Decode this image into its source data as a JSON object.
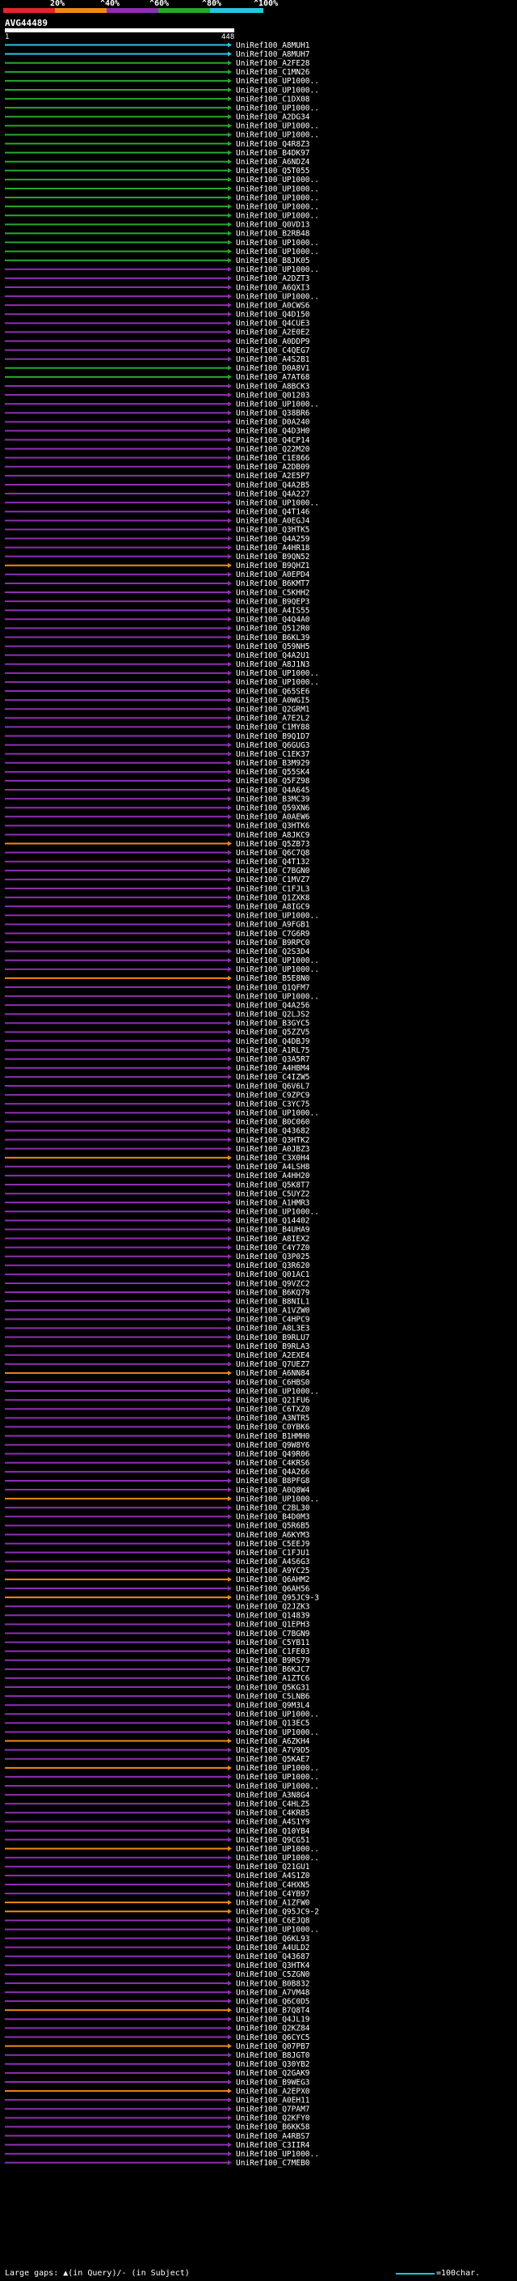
{
  "legend": {
    "ticks": [
      "20%",
      "^40%",
      "^60%",
      "^80%",
      "^100%"
    ],
    "colors": [
      "#e8232b",
      "#ef8a16",
      "#8e2fb0",
      "#27a92c",
      "#27c6e0"
    ]
  },
  "query": {
    "name": "AVG44489",
    "start": "1",
    "end": "448"
  },
  "hits": [
    {
      "label": "UniRef100_A8MUH1",
      "color": "#27c6e0"
    },
    {
      "label": "UniRef100_A8MUH7",
      "color": "#27c6e0"
    },
    {
      "label": "UniRef100_A2FE28",
      "color": "#27a92c"
    },
    {
      "label": "UniRef100_C1MN26",
      "color": "#27a92c"
    },
    {
      "label": "UniRef100_UP1000..",
      "color": "#27a92c"
    },
    {
      "label": "UniRef100_UP1000..",
      "color": "#27a92c"
    },
    {
      "label": "UniRef100_C1DX08",
      "color": "#27a92c"
    },
    {
      "label": "UniRef100_UP1000..",
      "color": "#27a92c"
    },
    {
      "label": "UniRef100_A2DG34",
      "color": "#27a92c"
    },
    {
      "label": "UniRef100_UP1000..",
      "color": "#27a92c"
    },
    {
      "label": "UniRef100_UP1000..",
      "color": "#27a92c"
    },
    {
      "label": "UniRef100_Q4R8Z3",
      "color": "#27a92c"
    },
    {
      "label": "UniRef100_B4DK97",
      "color": "#27a92c"
    },
    {
      "label": "UniRef100_A6NDZ4",
      "color": "#27a92c"
    },
    {
      "label": "UniRef100_Q5T055",
      "color": "#27a92c"
    },
    {
      "label": "UniRef100_UP1000..",
      "color": "#27a92c"
    },
    {
      "label": "UniRef100_UP1000..",
      "color": "#27a92c"
    },
    {
      "label": "UniRef100_UP1000..",
      "color": "#27a92c"
    },
    {
      "label": "UniRef100_UP1000..",
      "color": "#27a92c"
    },
    {
      "label": "UniRef100_UP1000..",
      "color": "#27a92c"
    },
    {
      "label": "UniRef100_Q0VD13",
      "color": "#27a92c"
    },
    {
      "label": "UniRef100_B2RB48",
      "color": "#27a92c"
    },
    {
      "label": "UniRef100_UP1000..",
      "color": "#27a92c"
    },
    {
      "label": "UniRef100_UP1000..",
      "color": "#27a92c"
    },
    {
      "label": "UniRef100_B8JK05",
      "color": "#27a92c"
    },
    {
      "label": "UniRef100_UP1000..",
      "color": "#8e2fb0"
    },
    {
      "label": "UniRef100_A2DZT3",
      "color": "#8e2fb0"
    },
    {
      "label": "UniRef100_A6QXI3",
      "color": "#8e2fb0"
    },
    {
      "label": "UniRef100_UP1000..",
      "color": "#8e2fb0"
    },
    {
      "label": "UniRef100_A0CWS6",
      "color": "#8e2fb0"
    },
    {
      "label": "UniRef100_Q4D150",
      "color": "#8e2fb0"
    },
    {
      "label": "UniRef100_Q4CUE3",
      "color": "#8e2fb0"
    },
    {
      "label": "UniRef100_A2E0E2",
      "color": "#8e2fb0"
    },
    {
      "label": "UniRef100_A0DDP9",
      "color": "#8e2fb0"
    },
    {
      "label": "UniRef100_C4QEG7",
      "color": "#8e2fb0"
    },
    {
      "label": "UniRef100_A4S2B1",
      "color": "#8e2fb0"
    },
    {
      "label": "UniRef100_D0A8V1",
      "color": "#27a92c"
    },
    {
      "label": "UniRef100_A7AT68",
      "color": "#27a92c"
    },
    {
      "label": "UniRef100_A8BCK3",
      "color": "#8e2fb0"
    },
    {
      "label": "UniRef100_Q01203",
      "color": "#8e2fb0"
    },
    {
      "label": "UniRef100_UP1000..",
      "color": "#8e2fb0"
    },
    {
      "label": "UniRef100_Q38BR6",
      "color": "#8e2fb0"
    },
    {
      "label": "UniRef100_D0A240",
      "color": "#8e2fb0"
    },
    {
      "label": "UniRef100_Q4D3H0",
      "color": "#8e2fb0"
    },
    {
      "label": "UniRef100_Q4CP14",
      "color": "#8e2fb0"
    },
    {
      "label": "UniRef100_Q22M20",
      "color": "#8e2fb0"
    },
    {
      "label": "UniRef100_C1E866",
      "color": "#8e2fb0"
    },
    {
      "label": "UniRef100_A2DB09",
      "color": "#8e2fb0"
    },
    {
      "label": "UniRef100_A2E5P7",
      "color": "#8e2fb0"
    },
    {
      "label": "UniRef100_Q4A2B5",
      "color": "#8e2fb0"
    },
    {
      "label": "UniRef100_Q4A227",
      "color": "#8e2fb0"
    },
    {
      "label": "UniRef100_UP1000..",
      "color": "#8e2fb0"
    },
    {
      "label": "UniRef100_Q4T146",
      "color": "#8e2fb0"
    },
    {
      "label": "UniRef100_A0EGJ4",
      "color": "#8e2fb0"
    },
    {
      "label": "UniRef100_Q3HTK5",
      "color": "#8e2fb0"
    },
    {
      "label": "UniRef100_Q4A259",
      "color": "#8e2fb0"
    },
    {
      "label": "UniRef100_A4HR18",
      "color": "#8e2fb0"
    },
    {
      "label": "UniRef100_B9QN52",
      "color": "#8e2fb0"
    },
    {
      "label": "UniRef100_B9QHZ1",
      "color": "#ef8a16"
    },
    {
      "label": "UniRef100_A0EPD4",
      "color": "#8e2fb0"
    },
    {
      "label": "UniRef100_B6KMT7",
      "color": "#8e2fb0"
    },
    {
      "label": "UniRef100_C5KHH2",
      "color": "#8e2fb0"
    },
    {
      "label": "UniRef100_B9QEP3",
      "color": "#8e2fb0"
    },
    {
      "label": "UniRef100_A4IS55",
      "color": "#8e2fb0"
    },
    {
      "label": "UniRef100_Q4Q4A0",
      "color": "#8e2fb0"
    },
    {
      "label": "UniRef100_Q512R0",
      "color": "#8e2fb0"
    },
    {
      "label": "UniRef100_B6KL39",
      "color": "#8e2fb0"
    },
    {
      "label": "UniRef100_Q59NH5",
      "color": "#8e2fb0"
    },
    {
      "label": "UniRef100_Q4A2U1",
      "color": "#8e2fb0"
    },
    {
      "label": "UniRef100_A8J1N3",
      "color": "#8e2fb0"
    },
    {
      "label": "UniRef100_UP1000..",
      "color": "#8e2fb0"
    },
    {
      "label": "UniRef100_UP1000..",
      "color": "#8e2fb0"
    },
    {
      "label": "UniRef100_Q65SE6",
      "color": "#8e2fb0"
    },
    {
      "label": "UniRef100_A0WGI5",
      "color": "#8e2fb0"
    },
    {
      "label": "UniRef100_Q2GRM1",
      "color": "#8e2fb0"
    },
    {
      "label": "UniRef100_A7E2L2",
      "color": "#8e2fb0"
    },
    {
      "label": "UniRef100_C1MY88",
      "color": "#8e2fb0"
    },
    {
      "label": "UniRef100_B9Q1D7",
      "color": "#8e2fb0"
    },
    {
      "label": "UniRef100_Q6GUG3",
      "color": "#8e2fb0"
    },
    {
      "label": "UniRef100_C1EK37",
      "color": "#8e2fb0"
    },
    {
      "label": "UniRef100_B3M929",
      "color": "#8e2fb0"
    },
    {
      "label": "UniRef100_Q55SK4",
      "color": "#8e2fb0"
    },
    {
      "label": "UniRef100_Q5FZ98",
      "color": "#8e2fb0"
    },
    {
      "label": "UniRef100_Q4A645",
      "color": "#8e2fb0"
    },
    {
      "label": "UniRef100_B3MC39",
      "color": "#8e2fb0"
    },
    {
      "label": "UniRef100_Q59XN6",
      "color": "#8e2fb0"
    },
    {
      "label": "UniRef100_A0AEW6",
      "color": "#8e2fb0"
    },
    {
      "label": "UniRef100_Q3HTK6",
      "color": "#8e2fb0"
    },
    {
      "label": "UniRef100_A8JKC9",
      "color": "#8e2fb0"
    },
    {
      "label": "UniRef100_Q5ZB73",
      "color": "#ef8a16"
    },
    {
      "label": "UniRef100_Q6C7Q8",
      "color": "#8e2fb0"
    },
    {
      "label": "UniRef100_Q4T132",
      "color": "#8e2fb0"
    },
    {
      "label": "UniRef100_C7BGN0",
      "color": "#8e2fb0"
    },
    {
      "label": "UniRef100_C1MVZ7",
      "color": "#8e2fb0"
    },
    {
      "label": "UniRef100_C1FJL3",
      "color": "#8e2fb0"
    },
    {
      "label": "UniRef100_Q1ZXK8",
      "color": "#8e2fb0"
    },
    {
      "label": "UniRef100_A8IGC9",
      "color": "#8e2fb0"
    },
    {
      "label": "UniRef100_UP1000..",
      "color": "#8e2fb0"
    },
    {
      "label": "UniRef100_A9FGB1",
      "color": "#8e2fb0"
    },
    {
      "label": "UniRef100_C7G6R9",
      "color": "#8e2fb0"
    },
    {
      "label": "UniRef100_B9RPC0",
      "color": "#8e2fb0"
    },
    {
      "label": "UniRef100_Q2S3D4",
      "color": "#8e2fb0"
    },
    {
      "label": "UniRef100_UP1000..",
      "color": "#8e2fb0"
    },
    {
      "label": "UniRef100_UP1000..",
      "color": "#8e2fb0"
    },
    {
      "label": "UniRef100_B5E8N0",
      "color": "#ef8a16"
    },
    {
      "label": "UniRef100_Q1QFM7",
      "color": "#8e2fb0"
    },
    {
      "label": "UniRef100_UP1000..",
      "color": "#8e2fb0"
    },
    {
      "label": "UniRef100_Q4A256",
      "color": "#8e2fb0"
    },
    {
      "label": "UniRef100_Q2LJS2",
      "color": "#8e2fb0"
    },
    {
      "label": "UniRef100_B3GYC5",
      "color": "#8e2fb0"
    },
    {
      "label": "UniRef100_Q5ZZV5",
      "color": "#8e2fb0"
    },
    {
      "label": "UniRef100_Q4DBJ9",
      "color": "#8e2fb0"
    },
    {
      "label": "UniRef100_A1RL75",
      "color": "#8e2fb0"
    },
    {
      "label": "UniRef100_Q3A5R7",
      "color": "#8e2fb0"
    },
    {
      "label": "UniRef100_A4HBM4",
      "color": "#8e2fb0"
    },
    {
      "label": "UniRef100_C4IZW5",
      "color": "#8e2fb0"
    },
    {
      "label": "UniRef100_Q6V6L7",
      "color": "#8e2fb0"
    },
    {
      "label": "UniRef100_C9ZPC9",
      "color": "#8e2fb0"
    },
    {
      "label": "UniRef100_C3YC75",
      "color": "#8e2fb0"
    },
    {
      "label": "UniRef100_UP1000..",
      "color": "#8e2fb0"
    },
    {
      "label": "UniRef100_B0C060",
      "color": "#8e2fb0"
    },
    {
      "label": "UniRef100_Q43682",
      "color": "#8e2fb0"
    },
    {
      "label": "UniRef100_Q3HTK2",
      "color": "#8e2fb0"
    },
    {
      "label": "UniRef100_A0JBZ3",
      "color": "#8e2fb0"
    },
    {
      "label": "UniRef100_C3X0H4",
      "color": "#ef8a16"
    },
    {
      "label": "UniRef100_A4LSH8",
      "color": "#8e2fb0"
    },
    {
      "label": "UniRef100_A4HH20",
      "color": "#8e2fb0"
    },
    {
      "label": "UniRef100_Q5K8T7",
      "color": "#8e2fb0"
    },
    {
      "label": "UniRef100_C5UYZ2",
      "color": "#8e2fb0"
    },
    {
      "label": "UniRef100_A1HMR3",
      "color": "#8e2fb0"
    },
    {
      "label": "UniRef100_UP1000..",
      "color": "#8e2fb0"
    },
    {
      "label": "UniRef100_Q14402",
      "color": "#8e2fb0"
    },
    {
      "label": "UniRef100_B4UHA9",
      "color": "#8e2fb0"
    },
    {
      "label": "UniRef100_A8IEX2",
      "color": "#8e2fb0"
    },
    {
      "label": "UniRef100_C4Y7Z0",
      "color": "#8e2fb0"
    },
    {
      "label": "UniRef100_Q3P025",
      "color": "#8e2fb0"
    },
    {
      "label": "UniRef100_Q3R620",
      "color": "#8e2fb0"
    },
    {
      "label": "UniRef100_Q01AC1",
      "color": "#8e2fb0"
    },
    {
      "label": "UniRef100_Q9VZC2",
      "color": "#8e2fb0"
    },
    {
      "label": "UniRef100_B6KQ79",
      "color": "#8e2fb0"
    },
    {
      "label": "UniRef100_B8NIL1",
      "color": "#8e2fb0"
    },
    {
      "label": "UniRef100_A1VZW0",
      "color": "#8e2fb0"
    },
    {
      "label": "UniRef100_C4HPC9",
      "color": "#8e2fb0"
    },
    {
      "label": "UniRef100_A8L3E3",
      "color": "#8e2fb0"
    },
    {
      "label": "UniRef100_B9RLU7",
      "color": "#8e2fb0"
    },
    {
      "label": "UniRef100_B9RLA3",
      "color": "#8e2fb0"
    },
    {
      "label": "UniRef100_A2EXE4",
      "color": "#8e2fb0"
    },
    {
      "label": "UniRef100_Q7UEZ7",
      "color": "#8e2fb0"
    },
    {
      "label": "UniRef100_A6NN84",
      "color": "#ef8a16"
    },
    {
      "label": "UniRef100_C6HBS0",
      "color": "#8e2fb0"
    },
    {
      "label": "UniRef100_UP1000..",
      "color": "#8e2fb0"
    },
    {
      "label": "UniRef100_Q21FU6",
      "color": "#8e2fb0"
    },
    {
      "label": "UniRef100_C6TXZ0",
      "color": "#8e2fb0"
    },
    {
      "label": "UniRef100_A3NTR5",
      "color": "#8e2fb0"
    },
    {
      "label": "UniRef100_C0YBK6",
      "color": "#8e2fb0"
    },
    {
      "label": "UniRef100_B1HMH0",
      "color": "#8e2fb0"
    },
    {
      "label": "UniRef100_Q9W8Y6",
      "color": "#8e2fb0"
    },
    {
      "label": "UniRef100_Q49R06",
      "color": "#8e2fb0"
    },
    {
      "label": "UniRef100_C4KRS6",
      "color": "#8e2fb0"
    },
    {
      "label": "UniRef100_Q4A266",
      "color": "#8e2fb0"
    },
    {
      "label": "UniRef100_B8PFG8",
      "color": "#8e2fb0"
    },
    {
      "label": "UniRef100_A0Q8W4",
      "color": "#8e2fb0"
    },
    {
      "label": "UniRef100_UP1000..",
      "color": "#ef8a16"
    },
    {
      "label": "UniRef100_C2BL30",
      "color": "#8e2fb0"
    },
    {
      "label": "UniRef100_B4D0M3",
      "color": "#8e2fb0"
    },
    {
      "label": "UniRef100_Q5R6B5",
      "color": "#8e2fb0"
    },
    {
      "label": "UniRef100_A6KYM3",
      "color": "#8e2fb0"
    },
    {
      "label": "UniRef100_C5EEJ9",
      "color": "#8e2fb0"
    },
    {
      "label": "UniRef100_C1FJU1",
      "color": "#8e2fb0"
    },
    {
      "label": "UniRef100_A4S6G3",
      "color": "#8e2fb0"
    },
    {
      "label": "UniRef100_A9YC25",
      "color": "#8e2fb0"
    },
    {
      "label": "UniRef100_Q6AHM2",
      "color": "#ef8a16"
    },
    {
      "label": "UniRef100_Q6AH56",
      "color": "#8e2fb0"
    },
    {
      "label": "UniRef100_Q95JC9-3",
      "color": "#ef8a16"
    },
    {
      "label": "UniRef100_Q2JZK3",
      "color": "#8e2fb0"
    },
    {
      "label": "UniRef100_Q14839",
      "color": "#8e2fb0"
    },
    {
      "label": "UniRef100_Q1EPH3",
      "color": "#8e2fb0"
    },
    {
      "label": "UniRef100_C7BGN9",
      "color": "#8e2fb0"
    },
    {
      "label": "UniRef100_C5YB11",
      "color": "#8e2fb0"
    },
    {
      "label": "UniRef100_C1FE03",
      "color": "#8e2fb0"
    },
    {
      "label": "UniRef100_B9RS79",
      "color": "#8e2fb0"
    },
    {
      "label": "UniRef100_B6KJC7",
      "color": "#8e2fb0"
    },
    {
      "label": "UniRef100_A1ZTC6",
      "color": "#8e2fb0"
    },
    {
      "label": "UniRef100_Q5KG31",
      "color": "#8e2fb0"
    },
    {
      "label": "UniRef100_C5LNB6",
      "color": "#8e2fb0"
    },
    {
      "label": "UniRef100_Q9M3L4",
      "color": "#8e2fb0"
    },
    {
      "label": "UniRef100_UP1000..",
      "color": "#8e2fb0"
    },
    {
      "label": "UniRef100_Q13EC5",
      "color": "#8e2fb0"
    },
    {
      "label": "UniRef100_UP1000..",
      "color": "#8e2fb0"
    },
    {
      "label": "UniRef100_A6ZKH4",
      "color": "#ef8a16"
    },
    {
      "label": "UniRef100_A7V9D5",
      "color": "#8e2fb0"
    },
    {
      "label": "UniRef100_Q5KAE7",
      "color": "#8e2fb0"
    },
    {
      "label": "UniRef100_UP1000..",
      "color": "#ef8a16"
    },
    {
      "label": "UniRef100_UP1000..",
      "color": "#8e2fb0"
    },
    {
      "label": "UniRef100_UP1000..",
      "color": "#8e2fb0"
    },
    {
      "label": "UniRef100_A3N8G4",
      "color": "#8e2fb0"
    },
    {
      "label": "UniRef100_C4HLZ5",
      "color": "#8e2fb0"
    },
    {
      "label": "UniRef100_C4KR85",
      "color": "#8e2fb0"
    },
    {
      "label": "UniRef100_A4S1Y9",
      "color": "#8e2fb0"
    },
    {
      "label": "UniRef100_Q10YB4",
      "color": "#8e2fb0"
    },
    {
      "label": "UniRef100_Q9CG51",
      "color": "#8e2fb0"
    },
    {
      "label": "UniRef100_UP1000..",
      "color": "#ef8a16"
    },
    {
      "label": "UniRef100_UP1000..",
      "color": "#8e2fb0"
    },
    {
      "label": "UniRef100_Q21GU1",
      "color": "#8e2fb0"
    },
    {
      "label": "UniRef100_A4S1Z0",
      "color": "#8e2fb0"
    },
    {
      "label": "UniRef100_C4HXN5",
      "color": "#8e2fb0"
    },
    {
      "label": "UniRef100_C4YB97",
      "color": "#8e2fb0"
    },
    {
      "label": "UniRef100_A1ZFW0",
      "color": "#ef8a16"
    },
    {
      "label": "UniRef100_Q95JC9-2",
      "color": "#ef8a16"
    },
    {
      "label": "UniRef100_C6EJQ8",
      "color": "#8e2fb0"
    },
    {
      "label": "UniRef100_UP1000..",
      "color": "#8e2fb0"
    },
    {
      "label": "UniRef100_Q6KL93",
      "color": "#8e2fb0"
    },
    {
      "label": "UniRef100_A4ULD2",
      "color": "#8e2fb0"
    },
    {
      "label": "UniRef100_Q43687",
      "color": "#8e2fb0"
    },
    {
      "label": "UniRef100_Q3HTK4",
      "color": "#8e2fb0"
    },
    {
      "label": "UniRef100_C5ZGN0",
      "color": "#8e2fb0"
    },
    {
      "label": "UniRef100_B0B832",
      "color": "#8e2fb0"
    },
    {
      "label": "UniRef100_A7VM48",
      "color": "#8e2fb0"
    },
    {
      "label": "UniRef100_Q6C0D5",
      "color": "#8e2fb0"
    },
    {
      "label": "UniRef100_B7Q8T4",
      "color": "#ef8a16"
    },
    {
      "label": "UniRef100_Q4JL19",
      "color": "#8e2fb0"
    },
    {
      "label": "UniRef100_Q2KZ84",
      "color": "#8e2fb0"
    },
    {
      "label": "UniRef100_Q6CYC5",
      "color": "#8e2fb0"
    },
    {
      "label": "UniRef100_Q07PB7",
      "color": "#ef8a16"
    },
    {
      "label": "UniRef100_B8JGT0",
      "color": "#8e2fb0"
    },
    {
      "label": "UniRef100_Q30YB2",
      "color": "#8e2fb0"
    },
    {
      "label": "UniRef100_Q2GAK9",
      "color": "#8e2fb0"
    },
    {
      "label": "UniRef100_B9WEG3",
      "color": "#8e2fb0"
    },
    {
      "label": "UniRef100_A2EPX0",
      "color": "#ef8a16"
    },
    {
      "label": "UniRef100_A0EH11",
      "color": "#8e2fb0"
    },
    {
      "label": "UniRef100_Q7PAM7",
      "color": "#8e2fb0"
    },
    {
      "label": "UniRef100_Q2KFY0",
      "color": "#8e2fb0"
    },
    {
      "label": "UniRef100_B6KK58",
      "color": "#8e2fb0"
    },
    {
      "label": "UniRef100_A4RBS7",
      "color": "#8e2fb0"
    },
    {
      "label": "UniRef100_C3IIR4",
      "color": "#8e2fb0"
    },
    {
      "label": "UniRef100_UP1000..",
      "color": "#8e2fb0"
    },
    {
      "label": "UniRef100_C7MEB0",
      "color": "#8e2fb0"
    }
  ],
  "footer": {
    "text": "Large gaps: ▲(in Query)/- (in Subject)",
    "scale": "=100char."
  }
}
